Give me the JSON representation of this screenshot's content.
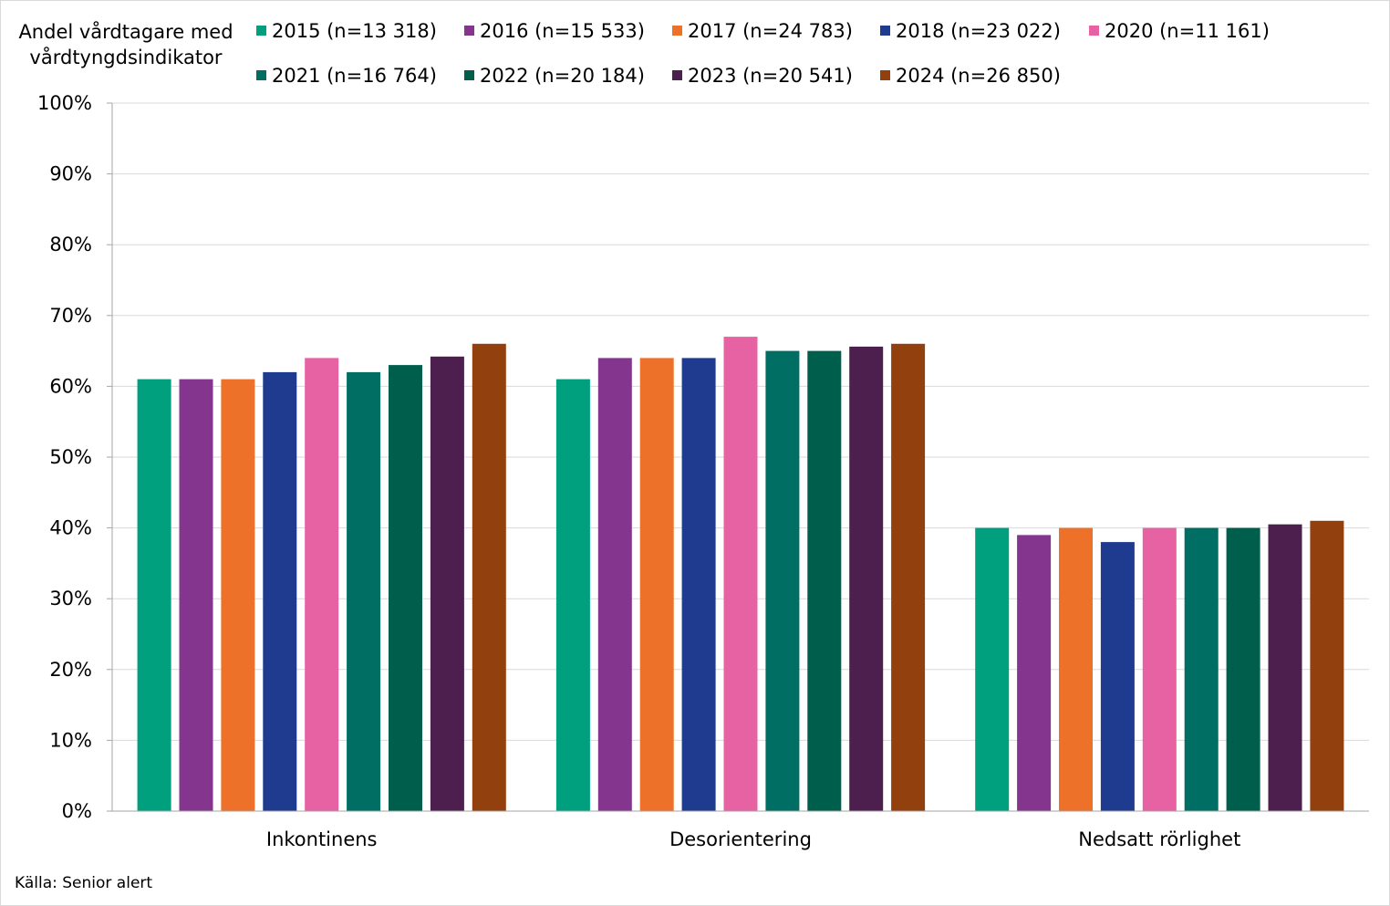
{
  "chart_data": {
    "type": "bar",
    "ylabel": "Andel vårdtagare med vårdtyngdsindikator",
    "xlabel": "",
    "title": "",
    "ylim": [
      0,
      100
    ],
    "y_tick_values": [
      0,
      10,
      20,
      30,
      40,
      50,
      60,
      70,
      80,
      90,
      100
    ],
    "y_tick_labels": [
      "0%",
      "10%",
      "20%",
      "30%",
      "40%",
      "50%",
      "60%",
      "70%",
      "80%",
      "90%",
      "100%"
    ],
    "grid": "horizontal",
    "legend_position": "top",
    "categories": [
      "Inkontinens",
      "Desorientering",
      "Nedsatt rörlighet"
    ],
    "series": [
      {
        "name": "2015 (n=13 318)",
        "color": "#00a07f",
        "values": [
          61,
          61,
          40
        ]
      },
      {
        "name": "2016 (n=15 533)",
        "color": "#84368f",
        "values": [
          61,
          64,
          39
        ]
      },
      {
        "name": "2017 (n=24 783)",
        "color": "#ee7129",
        "values": [
          61,
          64,
          40
        ]
      },
      {
        "name": "2018 (n=23 022)",
        "color": "#1e3b8f",
        "values": [
          62,
          64,
          38
        ]
      },
      {
        "name": "2020 (n=11 161)",
        "color": "#e662a2",
        "values": [
          64,
          67,
          40
        ]
      },
      {
        "name": "2021 (n=16 764)",
        "color": "#006e63",
        "values": [
          62,
          65,
          40
        ]
      },
      {
        "name": "2022 (n=20 184)",
        "color": "#005e4c",
        "values": [
          63,
          65,
          40
        ]
      },
      {
        "name": "2023 (n=20 541)",
        "color": "#4c1f4f",
        "values": [
          64.2,
          65.6,
          40.5
        ]
      },
      {
        "name": "2024 (n=26 850)",
        "color": "#93400f",
        "values": [
          66,
          66,
          41
        ]
      }
    ],
    "source": "Källa: Senior alert"
  }
}
